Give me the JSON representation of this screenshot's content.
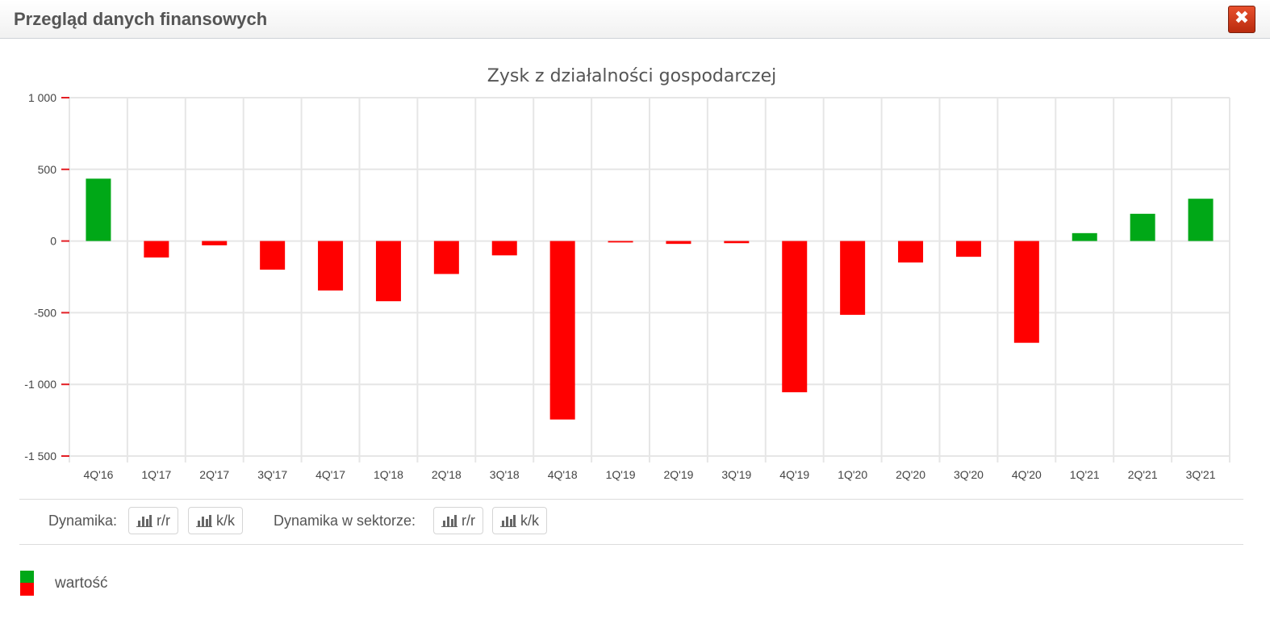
{
  "window": {
    "title": "Przegląd danych finansowych",
    "close_label": "✖"
  },
  "chart_data": {
    "type": "bar",
    "title": "Zysk z działalności gospodarczej",
    "categories": [
      "4Q'16",
      "1Q'17",
      "2Q'17",
      "3Q'17",
      "4Q'17",
      "1Q'18",
      "2Q'18",
      "3Q'18",
      "4Q'18",
      "1Q'19",
      "2Q'19",
      "3Q'19",
      "4Q'19",
      "1Q'20",
      "2Q'20",
      "3Q'20",
      "4Q'20",
      "1Q'21",
      "2Q'21",
      "3Q'21"
    ],
    "series": [
      {
        "name": "wartość",
        "values": [
          435,
          -115,
          -30,
          -200,
          -345,
          -420,
          -230,
          -100,
          -1245,
          -10,
          -20,
          -15,
          -1055,
          -515,
          -150,
          -110,
          -710,
          55,
          190,
          295
        ]
      }
    ],
    "yticks": [
      1000,
      500,
      0,
      -500,
      -1000,
      -1500
    ],
    "ytick_labels": [
      "1 000",
      "500",
      "0",
      "-500",
      "-1 000",
      "-1 500"
    ],
    "ylim": [
      -1500,
      1000
    ],
    "xlabel": "",
    "ylabel": "",
    "grid": true,
    "colors": {
      "positive": "#00a817",
      "negative": "#ff0000",
      "grid": "#e6e6e6",
      "tick": "#e31e24"
    }
  },
  "dynamics": {
    "label": "Dynamika:",
    "sector_label": "Dynamika w sektorze:",
    "yoy_label": "r/r",
    "qoq_label": "k/k",
    "icon": "bar-chart-icon"
  },
  "legend": {
    "label": "wartość"
  }
}
